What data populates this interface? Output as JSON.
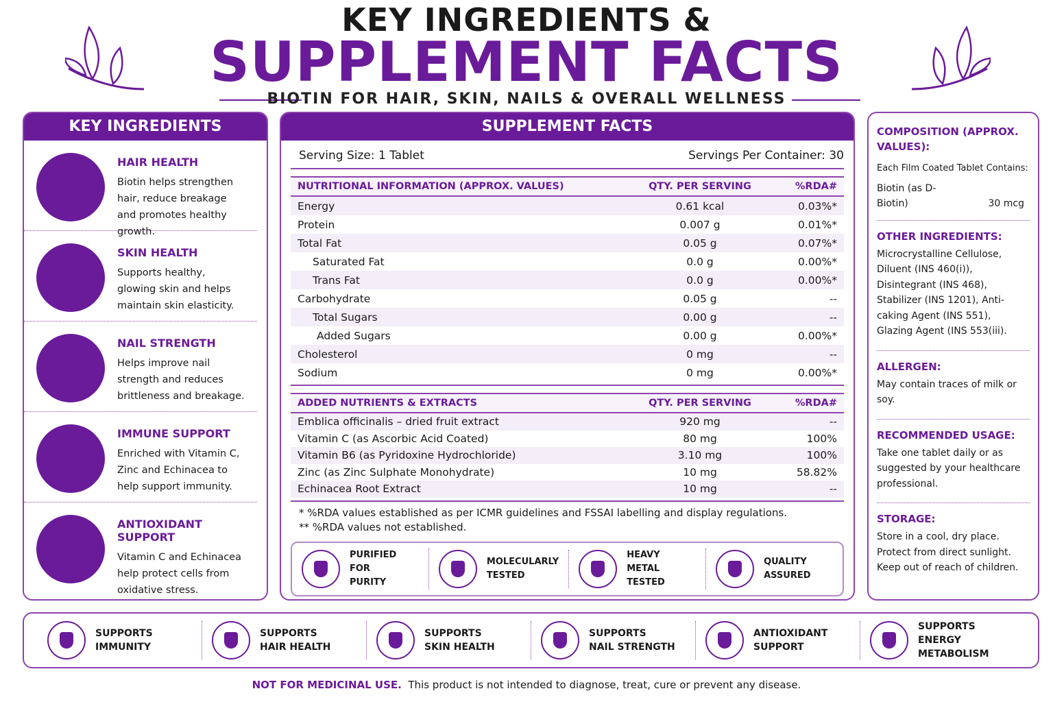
{
  "header": {
    "title_line1": "KEY INGREDIENTS &",
    "title_line2": "SUPPLEMENT FACTS",
    "subtitle": "BIOTIN FOR HAIR, SKIN, NAILS & OVERALL WELLNESS"
  },
  "key_ingredients": {
    "heading": "KEY INGREDIENTS",
    "items": [
      {
        "title": "HAIR HEALTH",
        "text": "Biotin helps strengthen hair, reduce breakage and promotes healthy growth."
      },
      {
        "title": "SKIN HEALTH",
        "text": "Supports healthy, glowing skin and helps maintain skin elasticity."
      },
      {
        "title": "NAIL STRENGTH",
        "text": "Helps improve nail strength and reduces brittleness and breakage."
      },
      {
        "title": "IMMUNE SUPPORT",
        "text": "Enriched with Vitamin C, Zinc and Echinacea to help support immunity."
      },
      {
        "title": "ANTIOXIDANT SUPPORT",
        "text": "Vitamin C and Echinacea help protect cells from oxidative stress."
      }
    ]
  },
  "supplement_facts": {
    "heading": "SUPPLEMENT FACTS",
    "serving_size": "Serving Size: 1 Tablet",
    "servings_per_container": "Servings Per Container: 30",
    "nutrition": {
      "header": [
        "NUTRITIONAL INFORMATION (APPROX. VALUES)",
        "QTY. PER SERVING",
        "%RDA#"
      ],
      "rows": [
        [
          "Energy",
          "0.61 kcal",
          "0.03%*"
        ],
        [
          "Protein",
          "0.007 g",
          "0.01%*"
        ],
        [
          "Total Fat",
          "0.05 g",
          "0.07%*"
        ],
        [
          "Saturated Fat",
          "0.0 g",
          "0.00%*"
        ],
        [
          "Trans Fat",
          "0.0 g",
          "0.00%*"
        ],
        [
          "Carbohydrate",
          "0.05 g",
          "--"
        ],
        [
          "Total Sugars",
          "0.00 g",
          "--"
        ],
        [
          "Added Sugars",
          "0.00 g",
          "0.00%*"
        ],
        [
          "Cholesterol",
          "0 mg",
          "--"
        ],
        [
          "Sodium",
          "0 mg",
          "0.00%*"
        ]
      ]
    },
    "extracts": {
      "header": [
        "ADDED NUTRIENTS & EXTRACTS",
        "QTY. PER SERVING",
        "%RDA#"
      ],
      "rows": [
        [
          "Emblica officinalis – dried fruit extract",
          "920 mg",
          "--"
        ],
        [
          "Vitamin C (as Ascorbic Acid Coated)",
          "80 mg",
          "100%"
        ],
        [
          "Vitamin B6 (as Pyridoxine Hydrochloride)",
          "3.10 mg",
          "100%"
        ],
        [
          "Zinc (as Zinc Sulphate Monohydrate)",
          "10 mg",
          "58.82%"
        ],
        [
          "Echinacea Root Extract",
          "10 mg",
          "--"
        ]
      ]
    },
    "footnotes": [
      "* %RDA values established as per ICMR guidelines and FSSAI labelling and display regulations.",
      "** %RDA values not established."
    ],
    "badges": [
      [
        "PURIFIED FOR",
        "PURITY"
      ],
      [
        "MOLECULARLY",
        "TESTED"
      ],
      [
        "HEAVY METAL",
        "TESTED"
      ],
      [
        "QUALITY",
        "ASSURED"
      ]
    ]
  },
  "info": {
    "composition": {
      "heading": "COMPOSITION (APPROX. VALUES):",
      "intro": "Each Film Coated Tablet Contains:",
      "ingredient": "Biotin (as D-Biotin)",
      "amount": "30 mcg"
    },
    "sections": [
      {
        "heading": "OTHER INGREDIENTS:",
        "text": "Microcrystalline Cellulose, Diluent (INS 460(i)), Disintegrant (INS 468), Stabilizer (INS 1201), Anti-caking Agent (INS 551), Glazing Agent (INS 553(iii)."
      },
      {
        "heading": "ALLERGEN:",
        "text": "May contain traces of milk or soy."
      },
      {
        "heading": "RECOMMENDED USAGE:",
        "text": "Take one tablet daily or as suggested by your healthcare professional."
      },
      {
        "heading": "STORAGE:",
        "text": "Store in a cool, dry place. Protect from direct sunlight. Keep out of reach of children."
      }
    ]
  },
  "benefits": [
    [
      "SUPPORTS",
      "IMMUNITY"
    ],
    [
      "SUPPORTS",
      "HAIR HEALTH"
    ],
    [
      "SUPPORTS",
      "SKIN HEALTH"
    ],
    [
      "SUPPORTS",
      "NAIL STRENGTH"
    ],
    [
      "ANTIOXIDANT",
      "SUPPORT"
    ],
    [
      "SUPPORTS",
      "ENERGY METABOLISM"
    ]
  ],
  "footer": {
    "warning": "NOT FOR MEDICINAL USE.",
    "disclaimer": "This product is not intended to diagnose, treat, cure or prevent any disease."
  }
}
